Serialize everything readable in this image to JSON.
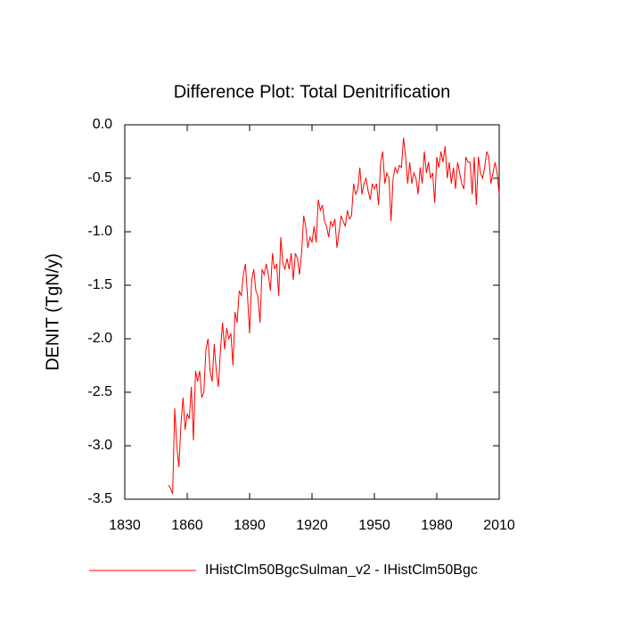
{
  "chart_data": {
    "type": "line",
    "title": "Difference Plot: Total Denitrification",
    "y_label": "DENIT  (TgN/y)",
    "xlim": [
      1830,
      2010
    ],
    "xticks": [
      1830,
      1860,
      1890,
      1920,
      1950,
      1980,
      2010
    ],
    "ylim": [
      -3.5,
      0
    ],
    "yticks": [
      {
        "value": 0,
        "label": "0.0"
      },
      -0.5,
      {
        "value": -1,
        "label": "-1.0"
      },
      -1.5,
      {
        "value": -2,
        "label": "-2.0"
      },
      -2.5,
      {
        "value": -3,
        "label": "-3.0"
      },
      -3.5
    ],
    "x": [
      1851,
      1852,
      1853,
      1854,
      1855,
      1856,
      1857,
      1858,
      1859,
      1860,
      1861,
      1862,
      1863,
      1864,
      1865,
      1866,
      1867,
      1868,
      1869,
      1870,
      1871,
      1872,
      1873,
      1874,
      1875,
      1876,
      1877,
      1878,
      1879,
      1880,
      1881,
      1882,
      1883,
      1884,
      1885,
      1886,
      1887,
      1888,
      1889,
      1890,
      1891,
      1892,
      1893,
      1894,
      1895,
      1896,
      1897,
      1898,
      1899,
      1900,
      1901,
      1902,
      1903,
      1904,
      1905,
      1906,
      1907,
      1908,
      1909,
      1910,
      1911,
      1912,
      1913,
      1914,
      1915,
      1916,
      1917,
      1918,
      1919,
      1920,
      1921,
      1922,
      1923,
      1924,
      1925,
      1926,
      1927,
      1928,
      1929,
      1930,
      1931,
      1932,
      1933,
      1934,
      1935,
      1936,
      1937,
      1938,
      1939,
      1940,
      1941,
      1942,
      1943,
      1944,
      1945,
      1946,
      1947,
      1948,
      1949,
      1950,
      1951,
      1952,
      1953,
      1954,
      1955,
      1956,
      1957,
      1958,
      1959,
      1960,
      1961,
      1962,
      1963,
      1964,
      1965,
      1966,
      1967,
      1968,
      1969,
      1970,
      1971,
      1972,
      1973,
      1974,
      1975,
      1976,
      1977,
      1978,
      1979,
      1980,
      1981,
      1982,
      1983,
      1984,
      1985,
      1986,
      1987,
      1988,
      1989,
      1990,
      1991,
      1992,
      1993,
      1994,
      1995,
      1996,
      1997,
      1998,
      1999,
      2000,
      2001,
      2002,
      2003,
      2004,
      2005,
      2006,
      2007,
      2008,
      2009,
      2010
    ],
    "series": [
      {
        "name": "IHistClm50BgcSulman_v2 - IHistClm50Bgc",
        "color": "#ff0000",
        "values": [
          -3.37,
          -3.4,
          -3.45,
          -2.65,
          -3.0,
          -3.2,
          -2.8,
          -2.55,
          -2.85,
          -2.7,
          -2.75,
          -2.45,
          -2.95,
          -2.3,
          -2.4,
          -2.3,
          -2.55,
          -2.5,
          -2.1,
          -2.0,
          -2.3,
          -2.4,
          -2.05,
          -2.3,
          -2.45,
          -2.1,
          -1.85,
          -2.1,
          -1.9,
          -2.0,
          -1.95,
          -2.25,
          -1.75,
          -1.85,
          -1.55,
          -1.6,
          -1.4,
          -1.3,
          -1.6,
          -1.95,
          -1.45,
          -1.35,
          -1.55,
          -1.6,
          -1.85,
          -1.35,
          -1.4,
          -1.3,
          -1.4,
          -1.55,
          -1.2,
          -1.35,
          -1.3,
          -1.6,
          -1.05,
          -1.3,
          -1.35,
          -1.25,
          -1.35,
          -1.2,
          -1.45,
          -1.2,
          -1.25,
          -1.4,
          -1.2,
          -0.85,
          -0.95,
          -1.15,
          -1.05,
          -1.1,
          -0.95,
          -1.1,
          -0.7,
          -0.8,
          -0.75,
          -0.9,
          -0.95,
          -1.05,
          -0.9,
          -0.95,
          -0.88,
          -1.15,
          -1.0,
          -0.85,
          -0.9,
          -0.95,
          -0.8,
          -0.88,
          -0.85,
          -0.55,
          -0.65,
          -0.6,
          -0.4,
          -0.65,
          -0.55,
          -0.5,
          -0.62,
          -0.7,
          -0.55,
          -0.6,
          -0.55,
          -0.75,
          -0.35,
          -0.25,
          -0.55,
          -0.45,
          -0.5,
          -0.9,
          -0.5,
          -0.4,
          -0.45,
          -0.38,
          -0.4,
          -0.12,
          -0.3,
          -0.55,
          -0.35,
          -0.55,
          -0.45,
          -0.5,
          -0.65,
          -0.4,
          -0.55,
          -0.25,
          -0.45,
          -0.35,
          -0.5,
          -0.45,
          -0.73,
          -0.3,
          -0.4,
          -0.25,
          -0.35,
          -0.2,
          -0.5,
          -0.35,
          -0.55,
          -0.4,
          -0.6,
          -0.35,
          -0.45,
          -0.55,
          -0.6,
          -0.3,
          -0.35,
          -0.35,
          -0.65,
          -0.3,
          -0.75,
          -0.3,
          -0.45,
          -0.5,
          -0.4,
          -0.25,
          -0.3,
          -0.55,
          -0.45,
          -0.35,
          -0.45,
          -0.65
        ]
      }
    ]
  }
}
